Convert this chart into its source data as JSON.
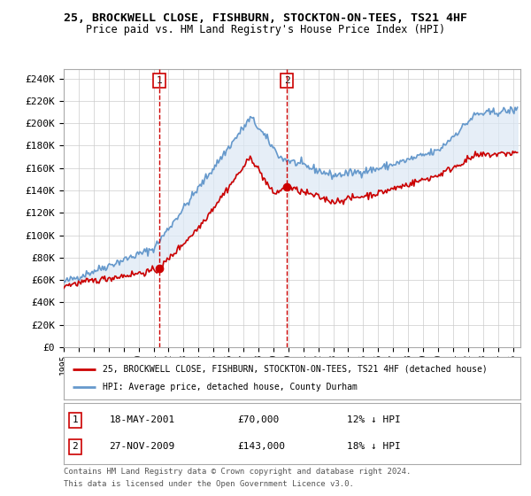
{
  "title": "25, BROCKWELL CLOSE, FISHBURN, STOCKTON-ON-TEES, TS21 4HF",
  "subtitle": "Price paid vs. HM Land Registry's House Price Index (HPI)",
  "ylabel_ticks": [
    0,
    20000,
    40000,
    60000,
    80000,
    100000,
    120000,
    140000,
    160000,
    180000,
    200000,
    220000,
    240000
  ],
  "xmin": 1995.0,
  "xmax": 2025.5,
  "ymin": 0,
  "ymax": 248000,
  "transaction1": {
    "label": "1",
    "date": "18-MAY-2001",
    "price": 70000,
    "pct": "12% ↓ HPI",
    "x": 2001.38
  },
  "transaction2": {
    "label": "2",
    "date": "27-NOV-2009",
    "price": 143000,
    "pct": "18% ↓ HPI",
    "x": 2009.9
  },
  "legend_line1": "25, BROCKWELL CLOSE, FISHBURN, STOCKTON-ON-TEES, TS21 4HF (detached house)",
  "legend_line2": "HPI: Average price, detached house, County Durham",
  "footer1": "Contains HM Land Registry data © Crown copyright and database right 2024.",
  "footer2": "This data is licensed under the Open Government Licence v3.0.",
  "red_color": "#cc0000",
  "blue_color": "#6699cc",
  "bg_color": "#dce8f5",
  "plot_bg": "#ffffff",
  "grid_color": "#cccccc"
}
